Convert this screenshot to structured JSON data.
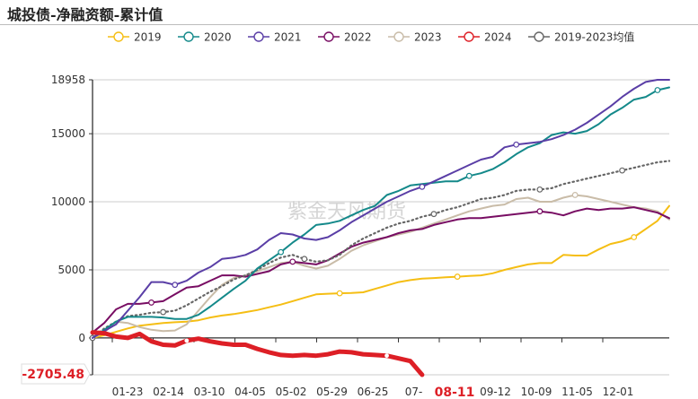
{
  "page_title": "城投债-净融资额-累计值",
  "watermark": "紫金天风期货",
  "chart_data": {
    "type": "line",
    "title": "城投债-净融资额-累计值",
    "xlabel": "",
    "ylabel": "",
    "ylim": [
      -2705.48,
      18958
    ],
    "y_ticks": [
      0,
      5000,
      10000,
      15000,
      18958
    ],
    "y_tick_labels": [
      "0",
      "5000",
      "10000",
      "15000",
      "18958"
    ],
    "x_tick_labels": [
      "01-23",
      "02-14",
      "03-10",
      "04-05",
      "05-02",
      "05-29",
      "06-25",
      "07-",
      "08-11",
      "09-12",
      "10-09",
      "11-05",
      "12-01"
    ],
    "x_tick_highlight": "08-11",
    "y_axis_pointer_label": "-2705.48",
    "grid": true,
    "legend_position": "top-center",
    "n_points": 50,
    "series": [
      {
        "name": "2019",
        "color": "#f5be14",
        "style": "solid",
        "values": [
          0,
          200,
          450,
          700,
          900,
          1000,
          1100,
          1150,
          1200,
          1300,
          1500,
          1650,
          1750,
          1900,
          2050,
          2250,
          2450,
          2700,
          2950,
          3200,
          3250,
          3280,
          3300,
          3350,
          3600,
          3850,
          4100,
          4250,
          4350,
          4400,
          4450,
          4500,
          4550,
          4600,
          4750,
          5000,
          5200,
          5400,
          5500,
          5500,
          6100,
          6050,
          6050,
          6500,
          6900,
          7100,
          7400,
          8000,
          8600,
          9700
        ]
      },
      {
        "name": "2020",
        "color": "#14898a",
        "style": "solid",
        "values": [
          0,
          600,
          1200,
          1550,
          1550,
          1550,
          1500,
          1400,
          1400,
          1700,
          2300,
          2950,
          3600,
          4200,
          5100,
          5700,
          6300,
          7000,
          7600,
          8300,
          8400,
          8600,
          9000,
          9400,
          9700,
          10500,
          10800,
          11200,
          11300,
          11400,
          11500,
          11500,
          11900,
          12100,
          12400,
          12900,
          13500,
          14000,
          14300,
          14900,
          15100,
          15000,
          15200,
          15700,
          16400,
          16900,
          17500,
          17700,
          18200,
          18400
        ]
      },
      {
        "name": "2021",
        "color": "#5a3ea6",
        "style": "solid",
        "values": [
          0,
          500,
          1000,
          2000,
          3000,
          4100,
          4100,
          3900,
          4200,
          4800,
          5200,
          5800,
          5900,
          6100,
          6500,
          7200,
          7700,
          7600,
          7300,
          7200,
          7400,
          7900,
          8500,
          9000,
          9500,
          10000,
          10400,
          10800,
          11100,
          11500,
          11900,
          12300,
          12700,
          13100,
          13300,
          14000,
          14200,
          14300,
          14400,
          14600,
          14900,
          15300,
          15800,
          16400,
          17000,
          17700,
          18300,
          18800,
          18958,
          18958
        ]
      },
      {
        "name": "2022",
        "color": "#780d63",
        "style": "solid",
        "values": [
          400,
          1100,
          2100,
          2500,
          2500,
          2600,
          2700,
          3200,
          3700,
          3800,
          4200,
          4600,
          4600,
          4500,
          4700,
          4900,
          5400,
          5600,
          5500,
          5400,
          5700,
          6200,
          6700,
          7000,
          7200,
          7400,
          7700,
          7900,
          8000,
          8300,
          8500,
          8700,
          8800,
          8800,
          8900,
          9000,
          9100,
          9200,
          9300,
          9200,
          9000,
          9300,
          9500,
          9400,
          9500,
          9500,
          9600,
          9400,
          9200,
          8800
        ]
      },
      {
        "name": "2023",
        "color": "#c9bca8",
        "style": "solid",
        "values": [
          0,
          400,
          1200,
          1100,
          800,
          600,
          500,
          550,
          1000,
          2000,
          3000,
          3900,
          4400,
          4600,
          4900,
          5200,
          5500,
          5600,
          5300,
          5100,
          5300,
          5800,
          6400,
          6800,
          7100,
          7400,
          7600,
          7800,
          8100,
          8400,
          8700,
          9000,
          9300,
          9500,
          9700,
          9800,
          10200,
          10300,
          10000,
          10000,
          10300,
          10500,
          10400,
          10200,
          10000,
          9800,
          9600,
          9500,
          9300,
          8700
        ]
      },
      {
        "name": "2024",
        "color": "#dd1f26",
        "style": "solid",
        "line_width": 5,
        "values": [
          400,
          350,
          100,
          0,
          300,
          -250,
          -500,
          -550,
          -200,
          -50,
          -250,
          -400,
          -500,
          -500,
          -800,
          -1050,
          -1250,
          -1300,
          -1250,
          -1300,
          -1200,
          -1000,
          -1050,
          -1200,
          -1250,
          -1300,
          -1500,
          -1700,
          -2705.48
        ]
      },
      {
        "name": "2019-2023均值",
        "color": "#666666",
        "style": "dotted",
        "values": [
          0,
          700,
          1200,
          1600,
          1700,
          1850,
          1900,
          2000,
          2400,
          2900,
          3400,
          3800,
          4300,
          4600,
          5000,
          5500,
          5900,
          6100,
          5800,
          5600,
          5700,
          6100,
          6800,
          7300,
          7700,
          8100,
          8400,
          8600,
          8900,
          9100,
          9400,
          9600,
          9900,
          10200,
          10300,
          10500,
          10800,
          10900,
          10900,
          11000,
          11300,
          11500,
          11700,
          11900,
          12100,
          12300,
          12500,
          12700,
          12900,
          13000
        ]
      }
    ],
    "markers": {
      "2019": [
        21,
        31,
        46
      ],
      "2020": [
        16,
        32,
        48
      ],
      "2021": [
        7,
        28,
        36
      ],
      "2022": [
        5,
        17,
        38
      ],
      "2023": [
        17,
        41
      ],
      "2024": [
        8,
        25
      ],
      "2019-2023均值": [
        0,
        6,
        18,
        29,
        38,
        45
      ]
    }
  }
}
